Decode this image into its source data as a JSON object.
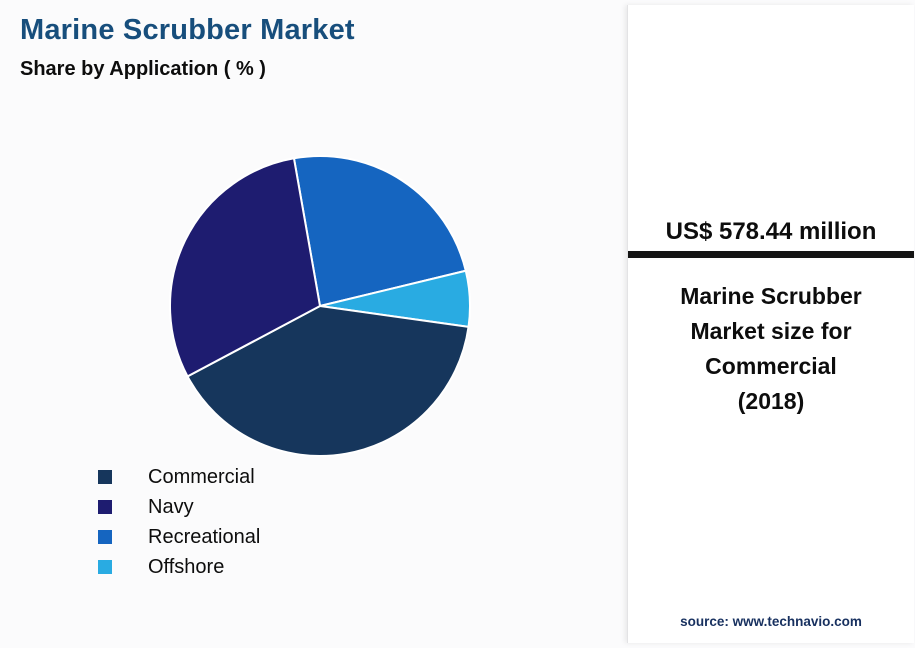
{
  "header": {
    "title": "Marine Scrubber Market",
    "subtitle": "Share by Application ( % )"
  },
  "chart_data": {
    "type": "pie",
    "title": "Marine Scrubber Market Share by Application (%)",
    "units": "%",
    "slices": [
      {
        "label": "Commercial",
        "value": 40,
        "color": "#16365C"
      },
      {
        "label": "Navy",
        "value": 30,
        "color": "#1E1C70"
      },
      {
        "label": "Recreational",
        "value": 24,
        "color": "#1565C0"
      },
      {
        "label": "Offshore",
        "value": 6,
        "color": "#29ABE2"
      }
    ],
    "draw_order": [
      "Recreational",
      "Offshore",
      "Commercial",
      "Navy"
    ],
    "start_angle_deg": -10,
    "legend_position": "bottom-left",
    "slice_stroke": "#ffffff"
  },
  "side_panel": {
    "stat_value": "US$ 578.44 million",
    "stat_label": "Marine Scrubber\nMarket size for\nCommercial\n(2018)",
    "source": "source: www.technavio.com"
  },
  "theme": {
    "title_color": "#174E7C",
    "divider_color": "#141414",
    "source_text_color": "#17305F",
    "panel_background": "#FFFFFF"
  }
}
